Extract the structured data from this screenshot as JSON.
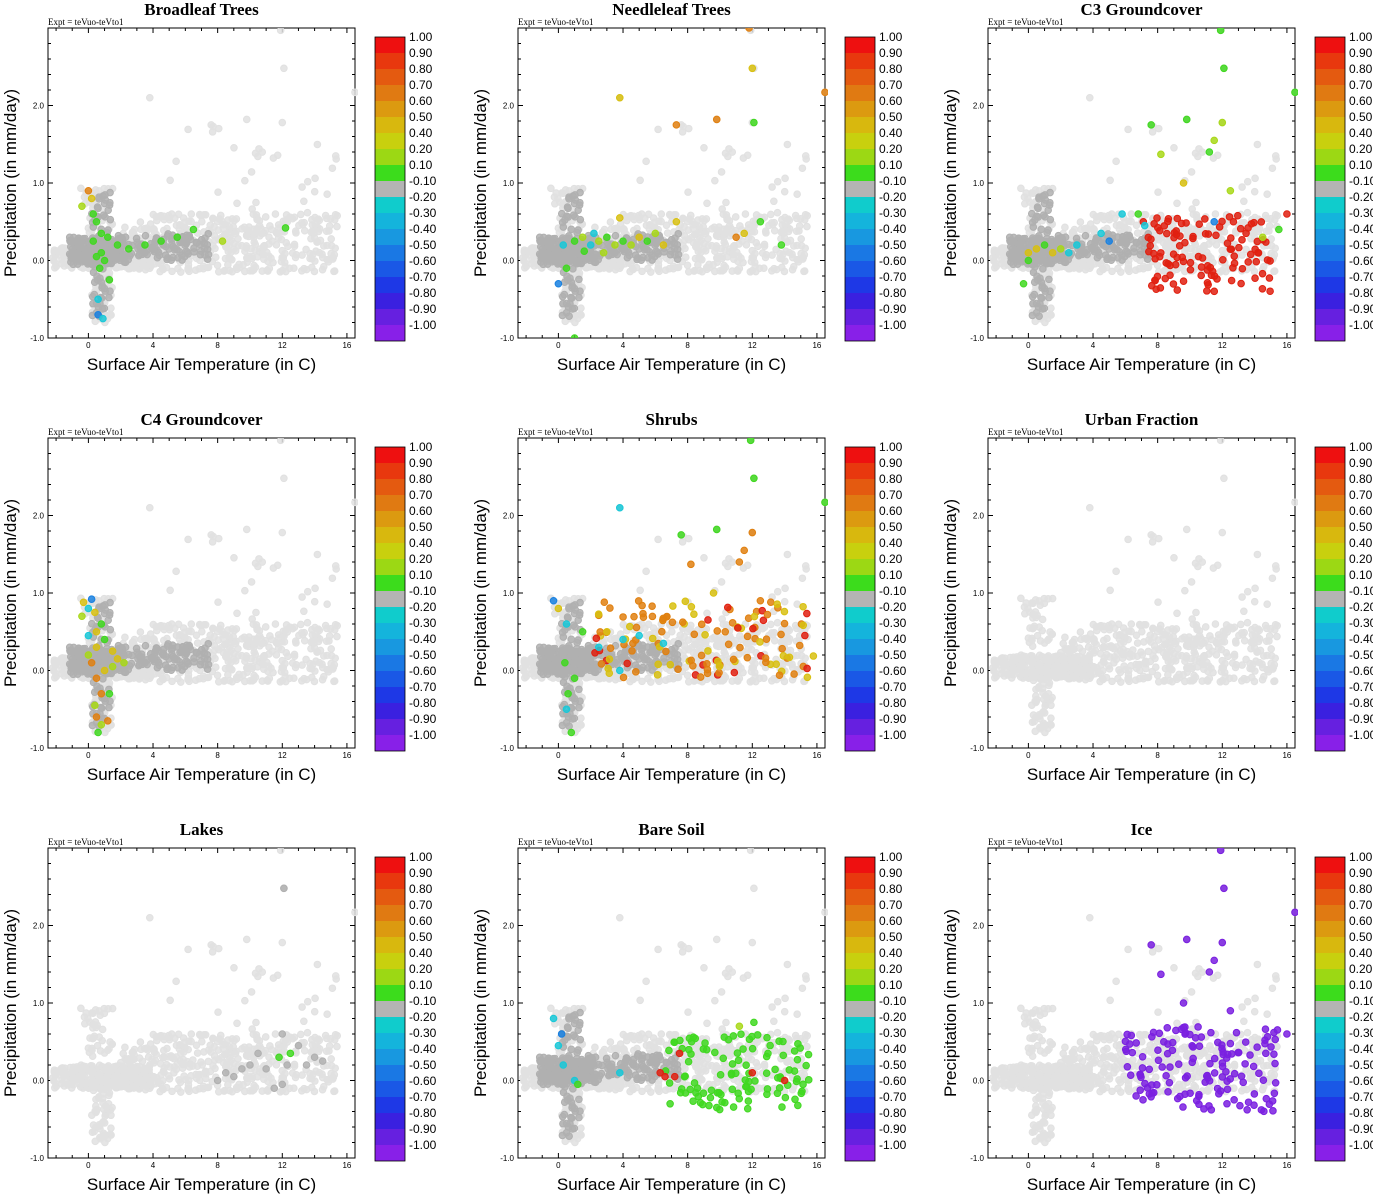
{
  "figure": {
    "expt_text": "Expt = teVuo-teVto1",
    "x_axis_label": "Surface Air Temperature (in C)",
    "y_axis_label": "Precipitation (in mm/day)",
    "x_ticks": [
      "0",
      "4",
      "8",
      "12",
      "16"
    ],
    "y_ticks": [
      "-1.0",
      "0.0",
      "1.0",
      "2.0"
    ],
    "colorbar_labels": [
      "1.00",
      "0.90",
      "0.80",
      "0.70",
      "0.60",
      "0.50",
      "0.40",
      "0.20",
      "0.10",
      "-0.10",
      "-0.20",
      "-0.30",
      "-0.40",
      "-0.50",
      "-0.60",
      "-0.70",
      "-0.80",
      "-0.90",
      "-1.00"
    ],
    "colorbar_colors": [
      "#ee1010",
      "#e8380e",
      "#e45a10",
      "#e07a12",
      "#dc9a10",
      "#d8b80e",
      "#c8d00e",
      "#9cd814",
      "#3cdc1c",
      "#b4b4b4",
      "#10cccc",
      "#14b4dc",
      "#1898e0",
      "#1a78e4",
      "#1a58e6",
      "#1e38e6",
      "#3a20e0",
      "#6620e0",
      "#8820e8"
    ]
  },
  "colors": {
    "background_points": "#e1e1e1",
    "mid_points": "#b0b0b0",
    "red": "#e02010",
    "orange": "#e08010",
    "yellow": "#d8c010",
    "yellow_green": "#a8d818",
    "green": "#40d820",
    "cyan": "#18c8d8",
    "blue": "#1880e0",
    "purple": "#7a20e0"
  },
  "chart_data": [
    {
      "type": "scatter",
      "title": "Broadleaf Trees",
      "xlim": [
        -2.5,
        16.5
      ],
      "ylim": [
        -1.0,
        3.0
      ],
      "x_ticks": [
        0,
        4,
        8,
        12,
        16
      ],
      "y_ticks": [
        -1.0,
        0.0,
        1.0,
        2.0
      ],
      "xlabel": "Surface Air Temperature (in C)",
      "ylabel": "Precipitation (in mm/day)",
      "colorbar_range": [
        -1.0,
        1.0
      ],
      "colorbar_colormap": "rainbow",
      "highlight_points": [
        [
          0.0,
          0.9,
          "orange"
        ],
        [
          0.2,
          0.8,
          "yellow"
        ],
        [
          -0.4,
          0.7,
          "yellow_green"
        ],
        [
          0.3,
          0.6,
          "green"
        ],
        [
          0.5,
          0.5,
          "green"
        ],
        [
          0.8,
          0.35,
          "green"
        ],
        [
          1.2,
          0.3,
          "green"
        ],
        [
          1.8,
          0.2,
          "green"
        ],
        [
          2.5,
          0.15,
          "green"
        ],
        [
          3.5,
          0.2,
          "green"
        ],
        [
          4.5,
          0.25,
          "green"
        ],
        [
          5.5,
          0.3,
          "green"
        ],
        [
          6.5,
          0.4,
          "green"
        ],
        [
          8.3,
          0.25,
          "yellow_green"
        ],
        [
          12.2,
          0.42,
          "green"
        ],
        [
          0.5,
          0.05,
          "green"
        ],
        [
          0.7,
          -0.1,
          "green"
        ],
        [
          1.3,
          -0.25,
          "green"
        ],
        [
          0.6,
          -0.5,
          "cyan"
        ],
        [
          0.6,
          -0.7,
          "blue"
        ],
        [
          0.9,
          -0.75,
          "cyan"
        ],
        [
          0.3,
          0.25,
          "green"
        ],
        [
          0.8,
          0.1,
          "green"
        ],
        [
          1.0,
          0.0,
          "green"
        ]
      ]
    },
    {
      "type": "scatter",
      "title": "Needleleaf Trees",
      "xlim": [
        -2.5,
        16.5
      ],
      "ylim": [
        -1.0,
        3.0
      ],
      "x_ticks": [
        0,
        4,
        8,
        12,
        16
      ],
      "y_ticks": [
        -1.0,
        0.0,
        1.0,
        2.0
      ],
      "xlabel": "Surface Air Temperature (in C)",
      "ylabel": "Precipitation (in mm/day)",
      "colorbar_range": [
        -1.0,
        1.0
      ],
      "colorbar_colormap": "rainbow",
      "highlight_points": [
        [
          3.8,
          2.1,
          "yellow"
        ],
        [
          7.3,
          1.75,
          "orange"
        ],
        [
          9.8,
          1.82,
          "orange"
        ],
        [
          12.0,
          2.48,
          "yellow"
        ],
        [
          12.1,
          1.78,
          "green"
        ],
        [
          16.5,
          2.17,
          "orange"
        ],
        [
          11.8,
          3.0,
          "orange"
        ],
        [
          0.3,
          0.2,
          "cyan"
        ],
        [
          0.0,
          -0.3,
          "blue"
        ],
        [
          0.5,
          -0.1,
          "green"
        ],
        [
          1.0,
          0.25,
          "green"
        ],
        [
          1.5,
          0.3,
          "yellow_green"
        ],
        [
          2.0,
          0.2,
          "cyan"
        ],
        [
          2.5,
          0.25,
          "yellow_green"
        ],
        [
          3.0,
          0.3,
          "green"
        ],
        [
          3.5,
          0.2,
          "yellow_green"
        ],
        [
          4.0,
          0.25,
          "green"
        ],
        [
          4.5,
          0.2,
          "yellow_green"
        ],
        [
          5.0,
          0.3,
          "yellow"
        ],
        [
          5.5,
          0.25,
          "green"
        ],
        [
          6.0,
          0.35,
          "yellow_green"
        ],
        [
          6.5,
          0.2,
          "yellow"
        ],
        [
          7.3,
          0.5,
          "yellow"
        ],
        [
          3.8,
          0.55,
          "yellow"
        ],
        [
          11.0,
          0.3,
          "orange"
        ],
        [
          11.5,
          0.35,
          "yellow"
        ],
        [
          12.5,
          0.5,
          "green"
        ],
        [
          13.8,
          0.2,
          "green"
        ],
        [
          1.0,
          -1.0,
          "green"
        ],
        [
          2.2,
          0.35,
          "cyan"
        ],
        [
          1.6,
          0.12,
          "green"
        ],
        [
          2.8,
          0.1,
          "yellow_green"
        ]
      ]
    },
    {
      "type": "scatter",
      "title": "C3 Groundcover",
      "xlim": [
        -2.5,
        16.5
      ],
      "ylim": [
        -1.0,
        3.0
      ],
      "x_ticks": [
        0,
        4,
        8,
        12,
        16
      ],
      "y_ticks": [
        -1.0,
        0.0,
        1.0,
        2.0
      ],
      "xlabel": "Surface Air Temperature (in C)",
      "ylabel": "Precipitation (in mm/day)",
      "colorbar_range": [
        -1.0,
        1.0
      ],
      "colorbar_colormap": "rainbow",
      "highlight_points": [
        [
          11.9,
          2.97,
          "green"
        ],
        [
          12.1,
          2.48,
          "green"
        ],
        [
          16.5,
          2.17,
          "green"
        ],
        [
          7.6,
          1.75,
          "green"
        ],
        [
          9.8,
          1.82,
          "green"
        ],
        [
          12.0,
          1.78,
          "yellow_green"
        ],
        [
          11.5,
          1.55,
          "yellow_green"
        ],
        [
          8.2,
          1.37,
          "yellow_green"
        ],
        [
          11.2,
          1.4,
          "green"
        ],
        [
          9.6,
          1.0,
          "yellow"
        ],
        [
          12.5,
          0.9,
          "yellow_green"
        ],
        [
          6.8,
          0.6,
          "green"
        ],
        [
          5.8,
          0.6,
          "cyan"
        ],
        [
          7.2,
          0.45,
          "cyan"
        ],
        [
          4.5,
          0.35,
          "cyan"
        ],
        [
          5.0,
          0.25,
          "blue"
        ],
        [
          3.0,
          0.2,
          "cyan"
        ],
        [
          11.5,
          0.5,
          "blue"
        ],
        [
          0.5,
          0.15,
          "yellow"
        ],
        [
          0.0,
          0.1,
          "yellow"
        ],
        [
          1.0,
          0.2,
          "green"
        ],
        [
          2.0,
          0.15,
          "yellow_green"
        ],
        [
          -0.3,
          -0.3,
          "green"
        ],
        [
          0.0,
          0.0,
          "green"
        ],
        [
          1.5,
          0.1,
          "yellow"
        ],
        [
          2.5,
          0.1,
          "cyan"
        ],
        [
          16.0,
          0.6,
          "red"
        ],
        [
          15.5,
          0.4,
          "green"
        ],
        [
          14.5,
          0.3,
          "yellow_green"
        ]
      ],
      "red_cluster": {
        "x_range": [
          7.0,
          15.0
        ],
        "y_range": [
          -0.4,
          0.6
        ],
        "count": 110
      }
    },
    {
      "type": "scatter",
      "title": "C4 Groundcover",
      "xlim": [
        -2.5,
        16.5
      ],
      "ylim": [
        -1.0,
        3.0
      ],
      "x_ticks": [
        0,
        4,
        8,
        12,
        16
      ],
      "y_ticks": [
        -1.0,
        0.0,
        1.0,
        2.0
      ],
      "xlabel": "Surface Air Temperature (in C)",
      "ylabel": "Precipitation (in mm/day)",
      "colorbar_range": [
        -1.0,
        1.0
      ],
      "colorbar_colormap": "rainbow",
      "highlight_points": [
        [
          0.2,
          0.92,
          "blue"
        ],
        [
          -0.3,
          0.88,
          "yellow"
        ],
        [
          0.0,
          0.8,
          "cyan"
        ],
        [
          -0.4,
          0.7,
          "yellow_green"
        ],
        [
          0.4,
          0.75,
          "yellow"
        ],
        [
          0.8,
          0.6,
          "green"
        ],
        [
          0.5,
          0.5,
          "yellow"
        ],
        [
          0.0,
          0.45,
          "cyan"
        ],
        [
          1.0,
          0.4,
          "green"
        ],
        [
          0.5,
          0.3,
          "yellow"
        ],
        [
          1.5,
          0.25,
          "yellow"
        ],
        [
          1.8,
          0.15,
          "yellow"
        ],
        [
          2.2,
          0.1,
          "yellow_green"
        ],
        [
          0.2,
          0.1,
          "orange"
        ],
        [
          1.0,
          0.0,
          "yellow"
        ],
        [
          0.5,
          -0.1,
          "orange"
        ],
        [
          0.8,
          -0.3,
          "orange"
        ],
        [
          1.3,
          -0.3,
          "green"
        ],
        [
          0.4,
          -0.45,
          "yellow_green"
        ],
        [
          0.5,
          -0.6,
          "orange"
        ],
        [
          0.8,
          -0.7,
          "yellow_green"
        ],
        [
          1.2,
          -0.65,
          "orange"
        ],
        [
          0.6,
          -0.8,
          "green"
        ],
        [
          0.0,
          0.2,
          "yellow_green"
        ],
        [
          1.5,
          0.05,
          "yellow_green"
        ]
      ]
    },
    {
      "type": "scatter",
      "title": "Shrubs",
      "xlim": [
        -2.5,
        16.5
      ],
      "ylim": [
        -1.0,
        3.0
      ],
      "x_ticks": [
        0,
        4,
        8,
        12,
        16
      ],
      "y_ticks": [
        -1.0,
        0.0,
        1.0,
        2.0
      ],
      "xlabel": "Surface Air Temperature (in C)",
      "ylabel": "Precipitation (in mm/day)",
      "colorbar_range": [
        -1.0,
        1.0
      ],
      "colorbar_colormap": "rainbow",
      "highlight_points": [
        [
          11.9,
          2.97,
          "green"
        ],
        [
          12.1,
          2.48,
          "green"
        ],
        [
          16.5,
          2.17,
          "green"
        ],
        [
          3.8,
          2.1,
          "cyan"
        ],
        [
          7.6,
          1.75,
          "green"
        ],
        [
          9.8,
          1.82,
          "green"
        ],
        [
          12.0,
          1.78,
          "orange"
        ],
        [
          11.5,
          1.55,
          "orange"
        ],
        [
          8.2,
          1.37,
          "orange"
        ],
        [
          11.2,
          1.4,
          "orange"
        ],
        [
          9.6,
          1.0,
          "yellow"
        ],
        [
          12.5,
          0.9,
          "orange"
        ],
        [
          -0.3,
          0.9,
          "blue"
        ],
        [
          0.0,
          0.8,
          "yellow"
        ],
        [
          0.5,
          0.6,
          "cyan"
        ],
        [
          1.5,
          0.5,
          "green"
        ],
        [
          3.0,
          0.5,
          "yellow"
        ],
        [
          4.0,
          0.4,
          "cyan"
        ],
        [
          5.0,
          0.45,
          "cyan"
        ],
        [
          6.5,
          0.35,
          "cyan"
        ],
        [
          2.5,
          0.3,
          "cyan"
        ],
        [
          0.8,
          -0.8,
          "green"
        ],
        [
          0.5,
          -0.5,
          "cyan"
        ],
        [
          3.8,
          0.0,
          "cyan"
        ],
        [
          1.0,
          -0.1,
          "green"
        ],
        [
          0.4,
          0.1,
          "green"
        ],
        [
          0.6,
          -0.3,
          "green"
        ]
      ],
      "orange_cluster": {
        "x_range": [
          2.0,
          16.0
        ],
        "y_range": [
          -0.1,
          0.9
        ],
        "count": 130
      }
    },
    {
      "type": "scatter",
      "title": "Urban Fraction",
      "xlim": [
        -2.5,
        16.5
      ],
      "ylim": [
        -1.0,
        3.0
      ],
      "x_ticks": [
        0,
        4,
        8,
        12,
        16
      ],
      "y_ticks": [
        -1.0,
        0.0,
        1.0,
        2.0
      ],
      "xlabel": "Surface Air Temperature (in C)",
      "ylabel": "Precipitation (in mm/day)",
      "colorbar_range": [
        -1.0,
        1.0
      ],
      "colorbar_colormap": "rainbow",
      "highlight_points": []
    },
    {
      "type": "scatter",
      "title": "Lakes",
      "xlim": [
        -2.5,
        16.5
      ],
      "ylim": [
        -1.0,
        3.0
      ],
      "x_ticks": [
        0,
        4,
        8,
        12,
        16
      ],
      "y_ticks": [
        -1.0,
        0.0,
        1.0,
        2.0
      ],
      "xlabel": "Surface Air Temperature (in C)",
      "ylabel": "Precipitation (in mm/day)",
      "colorbar_range": [
        -1.0,
        1.0
      ],
      "colorbar_colormap": "rainbow",
      "highlight_points": [
        [
          12.1,
          2.48,
          "mid"
        ],
        [
          12.0,
          0.6,
          "mid"
        ],
        [
          11.8,
          0.3,
          "green"
        ],
        [
          12.5,
          0.35,
          "green"
        ],
        [
          12.3,
          0.2,
          "mid"
        ],
        [
          11.0,
          0.15,
          "mid"
        ],
        [
          13.5,
          0.2,
          "mid"
        ],
        [
          14.5,
          0.25,
          "mid"
        ],
        [
          10.0,
          0.2,
          "mid"
        ],
        [
          9.0,
          0.05,
          "mid"
        ],
        [
          8.5,
          0.1,
          "mid"
        ],
        [
          8.0,
          0.0,
          "mid"
        ],
        [
          11.5,
          -0.1,
          "mid"
        ],
        [
          12.0,
          -0.05,
          "mid"
        ],
        [
          14.0,
          0.3,
          "mid"
        ],
        [
          10.5,
          0.35,
          "mid"
        ],
        [
          13.0,
          0.45,
          "mid"
        ],
        [
          9.5,
          0.15,
          "mid"
        ]
      ]
    },
    {
      "type": "scatter",
      "title": "Bare Soil",
      "xlim": [
        -2.5,
        16.5
      ],
      "ylim": [
        -1.0,
        3.0
      ],
      "x_ticks": [
        0,
        4,
        8,
        12,
        16
      ],
      "y_ticks": [
        -1.0,
        0.0,
        1.0,
        2.0
      ],
      "xlabel": "Surface Air Temperature (in C)",
      "ylabel": "Precipitation (in mm/day)",
      "colorbar_range": [
        -1.0,
        1.0
      ],
      "colorbar_colormap": "rainbow",
      "highlight_points": [
        [
          6.3,
          0.1,
          "red"
        ],
        [
          6.6,
          0.05,
          "red"
        ],
        [
          7.2,
          0.05,
          "red"
        ],
        [
          7.5,
          0.35,
          "red"
        ],
        [
          12.0,
          0.1,
          "red"
        ],
        [
          14.0,
          0.0,
          "red"
        ],
        [
          11.2,
          0.7,
          "yellow_green"
        ],
        [
          12.1,
          0.75,
          "green"
        ],
        [
          0.2,
          0.6,
          "blue"
        ],
        [
          0.0,
          0.45,
          "cyan"
        ],
        [
          -0.3,
          0.8,
          "cyan"
        ],
        [
          1.0,
          0.0,
          "cyan"
        ],
        [
          0.3,
          0.2,
          "cyan"
        ],
        [
          3.8,
          0.1,
          "cyan"
        ],
        [
          1.2,
          -0.05,
          "green"
        ]
      ],
      "green_cluster": {
        "x_range": [
          6.5,
          15.5
        ],
        "y_range": [
          -0.4,
          0.6
        ],
        "count": 110
      }
    },
    {
      "type": "scatter",
      "title": "Ice",
      "xlim": [
        -2.5,
        16.5
      ],
      "ylim": [
        -1.0,
        3.0
      ],
      "x_ticks": [
        0,
        4,
        8,
        12,
        16
      ],
      "y_ticks": [
        -1.0,
        0.0,
        1.0,
        2.0
      ],
      "xlabel": "Surface Air Temperature (in C)",
      "ylabel": "Precipitation (in mm/day)",
      "colorbar_range": [
        -1.0,
        1.0
      ],
      "colorbar_colormap": "rainbow",
      "highlight_points": [
        [
          11.9,
          2.97,
          "purple"
        ],
        [
          12.1,
          2.48,
          "purple"
        ],
        [
          16.5,
          2.17,
          "purple"
        ],
        [
          7.6,
          1.75,
          "purple"
        ],
        [
          9.8,
          1.82,
          "purple"
        ],
        [
          12.0,
          1.78,
          "purple"
        ],
        [
          11.5,
          1.55,
          "purple"
        ],
        [
          8.2,
          1.37,
          "purple"
        ],
        [
          11.2,
          1.4,
          "purple"
        ],
        [
          9.6,
          1.0,
          "purple"
        ],
        [
          12.5,
          0.9,
          "purple"
        ],
        [
          16.0,
          0.6,
          "purple"
        ]
      ],
      "purple_cluster": {
        "x_range": [
          6.0,
          15.5
        ],
        "y_range": [
          -0.4,
          0.7
        ],
        "count": 140
      }
    }
  ]
}
